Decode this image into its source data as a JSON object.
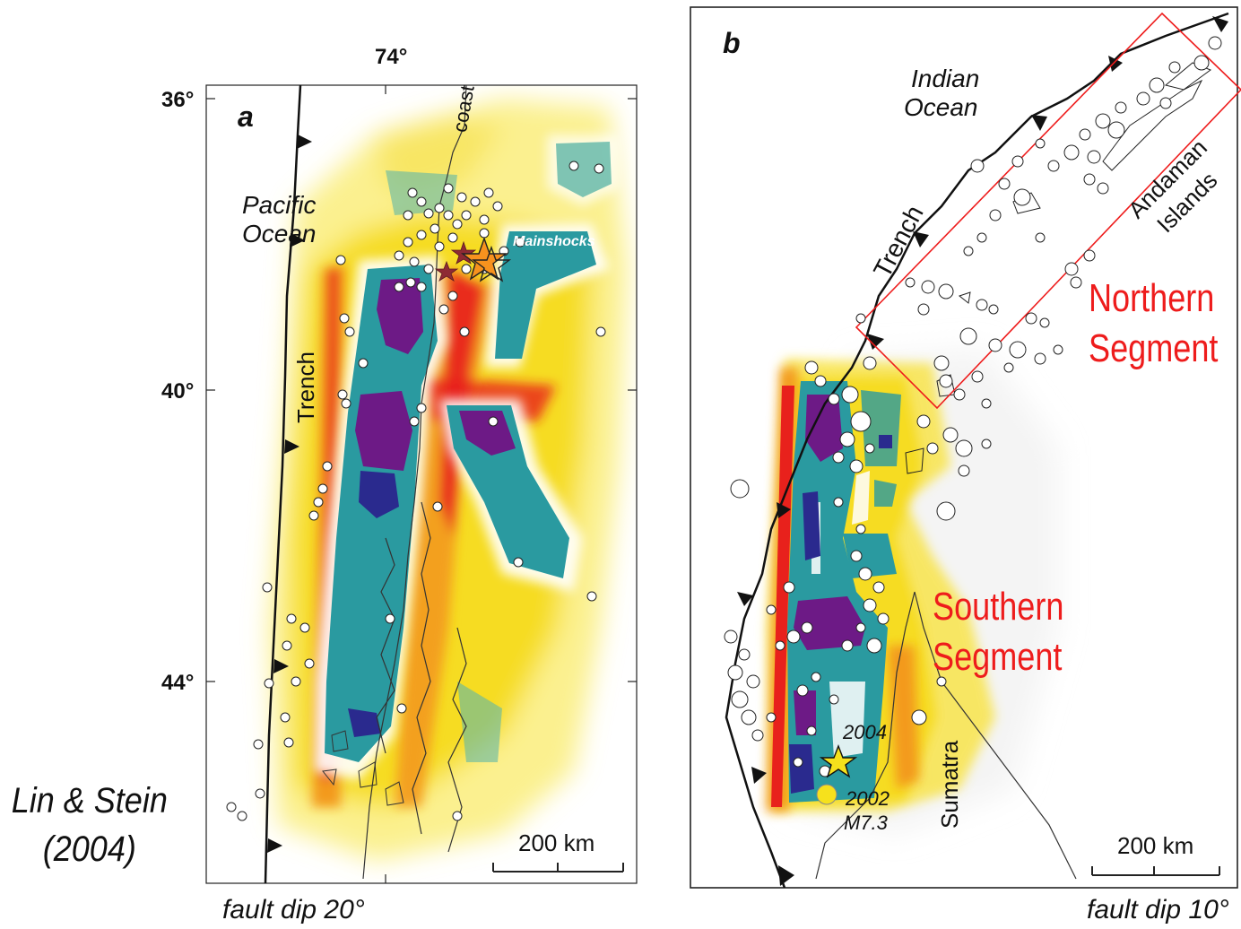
{
  "figure": {
    "citation_line1": "Lin & Stein",
    "citation_line2": "(2004)"
  },
  "panel_a": {
    "label": "a",
    "lon_label": "74°",
    "lat_labels": [
      "36°",
      "40°",
      "44°"
    ],
    "pacific_ocean_line1": "Pacific",
    "pacific_ocean_line2": "Ocean",
    "coast_label": "coast",
    "trench_label": "Trench",
    "mainshocks_label": "Mainshocks",
    "scale_label": "200 km",
    "fault_dip": "fault dip 20°"
  },
  "panel_b": {
    "label": "b",
    "indian_ocean_line1": "Indian",
    "indian_ocean_line2": "Ocean",
    "trench_label": "Trench",
    "andaman_line1": "Andaman",
    "andaman_line2": "Islands",
    "northern_line1": "Northern",
    "northern_line2": "Segment",
    "southern_line1": "Southern",
    "southern_line2": "Segment",
    "sumatra_label": "Sumatra",
    "event_2004": "2004",
    "event_2002_line1": "2002",
    "event_2002_line2": "M7.3",
    "scale_label": "200 km",
    "fault_dip": "fault dip 10°"
  },
  "colors": {
    "stress_increase_high": "#e8211c",
    "stress_increase_mid": "#f39a1c",
    "stress_increase_low": "#f8e01e",
    "stress_drop_mid": "#2a9aa0",
    "stress_drop_high": "#6d1a86",
    "stress_drop_deep": "#2a2a8e",
    "segment_text": "#ee1c1c",
    "aftershock_fill": "#ffffff",
    "mainshock_star": "#f7921e",
    "foreshock_star": "#8e2a34",
    "epicenter_2004": "#f6e11c"
  }
}
